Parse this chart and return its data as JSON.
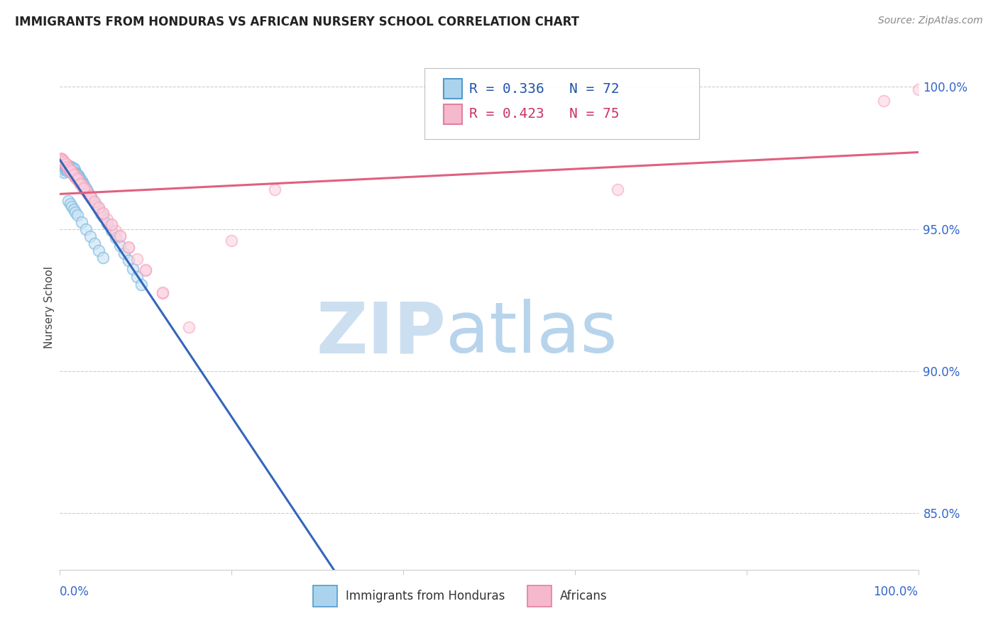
{
  "title": "IMMIGRANTS FROM HONDURAS VS AFRICAN NURSERY SCHOOL CORRELATION CHART",
  "source": "Source: ZipAtlas.com",
  "ylabel": "Nursery School",
  "yticks_labels": [
    "100.0%",
    "95.0%",
    "90.0%",
    "85.0%"
  ],
  "ytick_values": [
    1.0,
    0.95,
    0.9,
    0.85
  ],
  "xlim": [
    0.0,
    1.0
  ],
  "ylim": [
    0.83,
    1.015
  ],
  "legend1_label": "Immigrants from Honduras",
  "legend2_label": "Africans",
  "R_blue": 0.336,
  "N_blue": 72,
  "R_pink": 0.423,
  "N_pink": 75,
  "blue_color": "#7cb9e0",
  "pink_color": "#f4a0b8",
  "blue_line_color": "#3366bb",
  "pink_line_color": "#e06080",
  "background_color": "#ffffff",
  "blue_scatter_x": [
    0.002,
    0.003,
    0.004,
    0.004,
    0.005,
    0.005,
    0.005,
    0.006,
    0.006,
    0.007,
    0.007,
    0.008,
    0.008,
    0.009,
    0.009,
    0.01,
    0.01,
    0.011,
    0.011,
    0.012,
    0.012,
    0.013,
    0.013,
    0.014,
    0.014,
    0.015,
    0.015,
    0.016,
    0.016,
    0.017,
    0.018,
    0.019,
    0.02,
    0.021,
    0.022,
    0.023,
    0.024,
    0.025,
    0.026,
    0.027,
    0.028,
    0.03,
    0.032,
    0.034,
    0.036,
    0.038,
    0.04,
    0.042,
    0.045,
    0.048,
    0.05,
    0.055,
    0.06,
    0.065,
    0.07,
    0.075,
    0.08,
    0.085,
    0.09,
    0.095,
    0.01,
    0.012,
    0.014,
    0.016,
    0.018,
    0.02,
    0.025,
    0.03,
    0.035,
    0.04,
    0.045,
    0.05
  ],
  "blue_scatter_y": [
    0.972,
    0.9715,
    0.971,
    0.9725,
    0.97,
    0.9718,
    0.973,
    0.9722,
    0.9708,
    0.9715,
    0.9725,
    0.971,
    0.972,
    0.9705,
    0.9718,
    0.9712,
    0.9725,
    0.9708,
    0.9715,
    0.9702,
    0.972,
    0.971,
    0.9718,
    0.9705,
    0.9715,
    0.97,
    0.971,
    0.9705,
    0.9715,
    0.9708,
    0.97,
    0.9695,
    0.9692,
    0.9688,
    0.9685,
    0.968,
    0.9675,
    0.967,
    0.9665,
    0.966,
    0.9655,
    0.9645,
    0.9635,
    0.9625,
    0.9615,
    0.9605,
    0.9595,
    0.9585,
    0.957,
    0.9555,
    0.9545,
    0.952,
    0.9495,
    0.9468,
    0.9442,
    0.9415,
    0.9388,
    0.936,
    0.9332,
    0.9305,
    0.96,
    0.959,
    0.958,
    0.957,
    0.956,
    0.955,
    0.9525,
    0.95,
    0.9475,
    0.945,
    0.9425,
    0.94
  ],
  "pink_scatter_x": [
    0.001,
    0.002,
    0.003,
    0.004,
    0.005,
    0.006,
    0.007,
    0.008,
    0.009,
    0.01,
    0.011,
    0.012,
    0.013,
    0.014,
    0.015,
    0.016,
    0.017,
    0.018,
    0.019,
    0.02,
    0.022,
    0.024,
    0.026,
    0.028,
    0.03,
    0.032,
    0.034,
    0.036,
    0.04,
    0.045,
    0.05,
    0.055,
    0.06,
    0.065,
    0.07,
    0.08,
    0.09,
    0.1,
    0.12,
    0.15,
    0.002,
    0.004,
    0.006,
    0.008,
    0.01,
    0.012,
    0.015,
    0.018,
    0.021,
    0.025,
    0.03,
    0.035,
    0.04,
    0.045,
    0.05,
    0.06,
    0.07,
    0.08,
    0.1,
    0.12,
    0.003,
    0.005,
    0.007,
    0.009,
    0.011,
    0.013,
    0.016,
    0.02,
    0.024,
    0.028,
    0.65,
    0.96,
    1.0,
    0.2,
    0.25
  ],
  "pink_scatter_y": [
    0.9748,
    0.9745,
    0.9742,
    0.9738,
    0.9735,
    0.973,
    0.9726,
    0.9722,
    0.9718,
    0.9714,
    0.971,
    0.9706,
    0.9702,
    0.9698,
    0.9694,
    0.969,
    0.9686,
    0.9682,
    0.9678,
    0.9674,
    0.9666,
    0.9658,
    0.965,
    0.9642,
    0.9634,
    0.9626,
    0.9618,
    0.961,
    0.9594,
    0.9574,
    0.9554,
    0.9534,
    0.9514,
    0.9494,
    0.9474,
    0.9434,
    0.9394,
    0.9354,
    0.9274,
    0.9155,
    0.9746,
    0.974,
    0.9732,
    0.9724,
    0.9716,
    0.9708,
    0.9696,
    0.9684,
    0.9672,
    0.9656,
    0.9636,
    0.9616,
    0.9596,
    0.9576,
    0.9556,
    0.9516,
    0.9476,
    0.9436,
    0.9356,
    0.9276,
    0.9744,
    0.9736,
    0.9728,
    0.972,
    0.9712,
    0.9704,
    0.9692,
    0.9676,
    0.966,
    0.9644,
    0.964,
    0.995,
    0.999,
    0.946,
    0.964
  ]
}
